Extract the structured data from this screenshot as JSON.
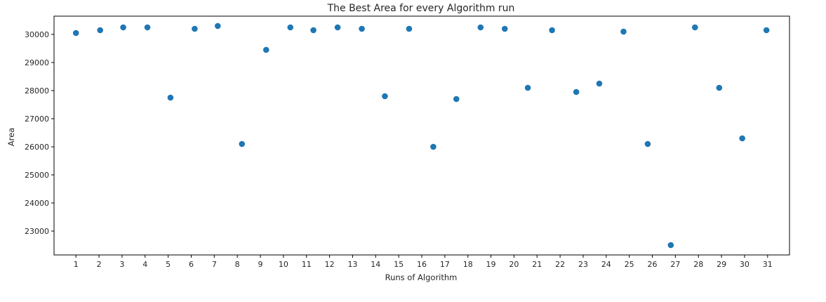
{
  "chart_data": {
    "type": "scatter",
    "title": "The Best Area for every Algorithm run",
    "xlabel": "Runs of Algorithm",
    "ylabel": "Area",
    "xticks": [
      1,
      2,
      3,
      4,
      5,
      6,
      7,
      8,
      9,
      10,
      11,
      12,
      13,
      14,
      15,
      16,
      17,
      18,
      19,
      20,
      21,
      22,
      23,
      24,
      25,
      26,
      27,
      28,
      29,
      30,
      31
    ],
    "yticks": [
      23000,
      24000,
      25000,
      26000,
      27000,
      28000,
      29000,
      30000
    ],
    "xlim": [
      0.05,
      31.95
    ],
    "ylim": [
      22150,
      30650
    ],
    "grid": false,
    "marker_color": "#1f77b4",
    "x": [
      1.0,
      2.05,
      3.05,
      4.1,
      5.1,
      6.15,
      7.15,
      8.2,
      9.25,
      10.3,
      11.3,
      12.35,
      13.4,
      14.4,
      15.45,
      16.5,
      17.5,
      18.55,
      19.6,
      20.6,
      21.65,
      22.7,
      23.7,
      24.75,
      25.8,
      26.8,
      27.85,
      28.9,
      29.9,
      30.95
    ],
    "y": [
      30050,
      30150,
      30250,
      30250,
      27750,
      30200,
      30300,
      26100,
      29450,
      30250,
      30150,
      30250,
      30200,
      27800,
      30200,
      26000,
      27700,
      30250,
      30200,
      28100,
      30150,
      27950,
      28250,
      30100,
      26100,
      22500,
      30250,
      28100,
      26300,
      30150
    ]
  }
}
